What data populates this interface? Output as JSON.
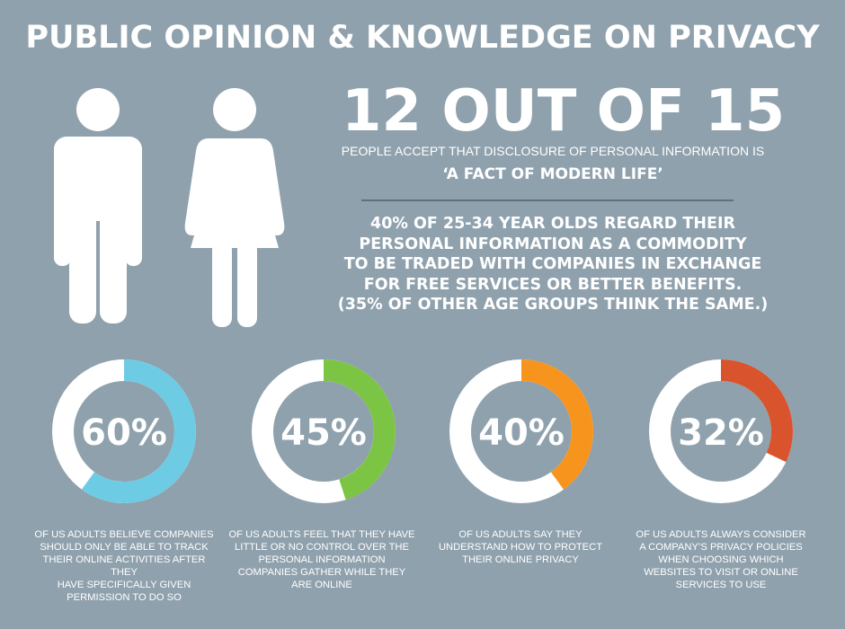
{
  "title": "PUBLIC OPINION & KNOWLEDGE ON PRIVACY",
  "headline_stat": {
    "value": "12 OUT OF 15",
    "description": "PEOPLE ACCEPT THAT DISCLOSURE OF PERSONAL INFORMATION IS",
    "quote": "‘A FACT OF MODERN LIFE’"
  },
  "age_stat": {
    "lines": [
      "40% OF 25-34 YEAR OLDS REGARD THEIR",
      "PERSONAL INFORMATION AS A COMMODITY",
      "TO BE TRADED WITH COMPANIES IN EXCHANGE",
      "FOR FREE SERVICES OR BETTER BENEFITS.",
      "(35% OF OTHER AGE GROUPS THINK THE SAME.)"
    ]
  },
  "icons": {
    "male": "male-figure-icon",
    "female": "female-figure-icon"
  },
  "colors": {
    "background": "#8fa1ad",
    "ring_base": "#ffffff",
    "divider": "#5b7282"
  },
  "donuts": [
    {
      "label": "60%",
      "value": 60,
      "color": "#6dcbe4",
      "caption": [
        "OF US ADULTS BELIEVE COMPANIES",
        "SHOULD ONLY BE ABLE TO TRACK",
        "THEIR ONLINE ACTIVITIES AFTER THEY",
        "HAVE SPECIFICALLY GIVEN",
        "PERMISSION TO DO SO"
      ]
    },
    {
      "label": "45%",
      "value": 45,
      "color": "#7cc544",
      "caption": [
        "OF US ADULTS FEEL THAT THEY HAVE",
        "LITTLE OR NO CONTROL OVER THE",
        "PERSONAL INFORMATION",
        "COMPANIES GATHER WHILE THEY",
        "ARE ONLINE"
      ]
    },
    {
      "label": "40%",
      "value": 40,
      "color": "#f7941e",
      "caption": [
        "OF US ADULTS SAY THEY",
        "UNDERSTAND HOW TO PROTECT",
        "THEIR ONLINE PRIVACY"
      ]
    },
    {
      "label": "32%",
      "value": 32,
      "color": "#d9532c",
      "caption": [
        "OF US ADULTS ALWAYS CONSIDER",
        "A COMPANY’S PRIVACY POLICIES",
        "WHEN CHOOSING WHICH",
        "WEBSITES TO VISIT OR ONLINE",
        "SERVICES TO USE"
      ]
    }
  ]
}
